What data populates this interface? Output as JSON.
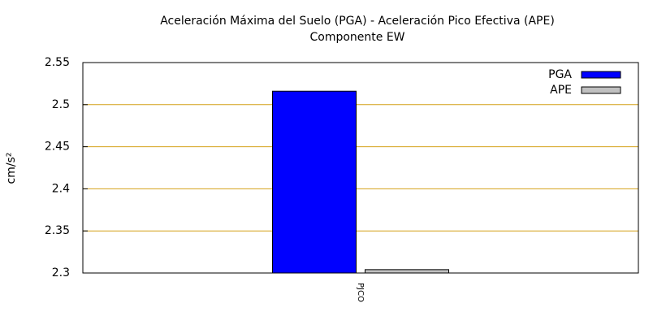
{
  "chart_data": {
    "type": "bar",
    "title": "Aceleración Máxima del Suelo (PGA) -  Aceleración Pico Efectiva (APE)",
    "subtitle": "Componente EW",
    "y_label": "cm/s²",
    "categories": [
      "PJCO"
    ],
    "series": [
      {
        "name": "PGA",
        "color": "#0000ff",
        "values": [
          2.516
        ]
      },
      {
        "name": "APE",
        "color": "#c0c0c0",
        "values": [
          2.304
        ]
      }
    ],
    "ylim": [
      2.3,
      2.55
    ],
    "yticks": [
      2.3,
      2.35,
      2.4,
      2.45,
      2.5,
      2.55
    ],
    "grid": true,
    "grid_color": "#d4a017",
    "legend": "top-right"
  }
}
